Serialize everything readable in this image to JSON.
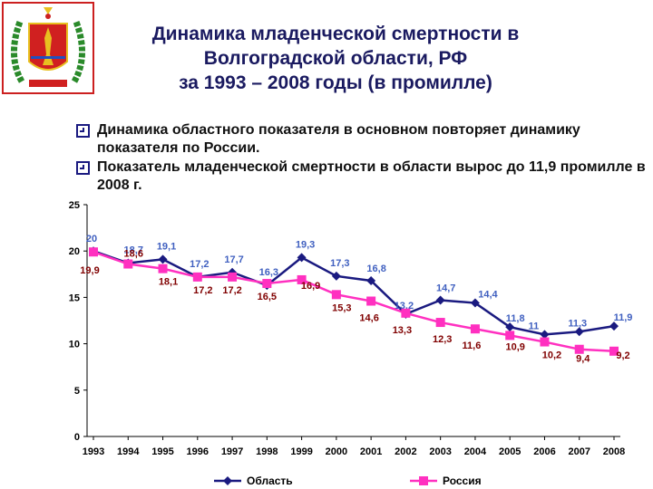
{
  "header": {
    "title_lines": [
      "Динамика младенческой смертности в",
      "Волгоградской  области, РФ",
      "за 1993 – 2008 годы (в промилле)"
    ]
  },
  "bullets": [
    "Динамика областного показателя в основном повторяет динамику показателя по России.",
    "Показатель младенческой смертности в области вырос до  11,9 промилле в 2008 г."
  ],
  "emblem": {
    "text": "ВОЛГОГРАДСКАЯ ОБЛАСТЬ",
    "colors": {
      "frame": "#cc2020",
      "wreath": "#2a8a2a",
      "field": "#d02020",
      "figure": "#e8c020"
    }
  },
  "chart_data": {
    "type": "line",
    "categories": [
      "1993",
      "1994",
      "1995",
      "1996",
      "1997",
      "1998",
      "1999",
      "2000",
      "2001",
      "2002",
      "2003",
      "2004",
      "2005",
      "2006",
      "2007",
      "2008"
    ],
    "ylim": [
      0,
      25
    ],
    "yticks": [
      "0",
      "5",
      "10",
      "15",
      "20",
      "25"
    ],
    "series": [
      {
        "name": "Область",
        "color": "#1a1a80",
        "label_color": "#4060c0",
        "marker": "diamond",
        "values": [
          20,
          18.7,
          19.1,
          17.2,
          17.7,
          16.3,
          19.3,
          17.3,
          16.8,
          13.2,
          14.7,
          14.4,
          11.8,
          11,
          11.3,
          11.9
        ],
        "labels": [
          "20",
          "18,7",
          "19,1",
          "17,2",
          "17,7",
          "16,3",
          "19,3",
          "17,3",
          "16,8",
          "13,2",
          "14,7",
          "14,4",
          "11,8",
          "11",
          "11,3",
          "11,9"
        ]
      },
      {
        "name": "Россия",
        "color": "#ff30c0",
        "label_color": "#800000",
        "marker": "square",
        "values": [
          19.9,
          18.6,
          18.1,
          17.2,
          17.2,
          16.5,
          16.9,
          15.3,
          14.6,
          13.3,
          12.3,
          11.6,
          10.9,
          10.2,
          9.4,
          9.2
        ],
        "labels": [
          "19,9",
          "18,6",
          "18,1",
          "17,2",
          "17,2",
          "16,5",
          "16,9",
          "15,3",
          "14,6",
          "13,3",
          "12,3",
          "11,6",
          "10,9",
          "10,2",
          "9,4",
          "9,2"
        ]
      }
    ],
    "grid": false,
    "legend_position": "bottom"
  }
}
